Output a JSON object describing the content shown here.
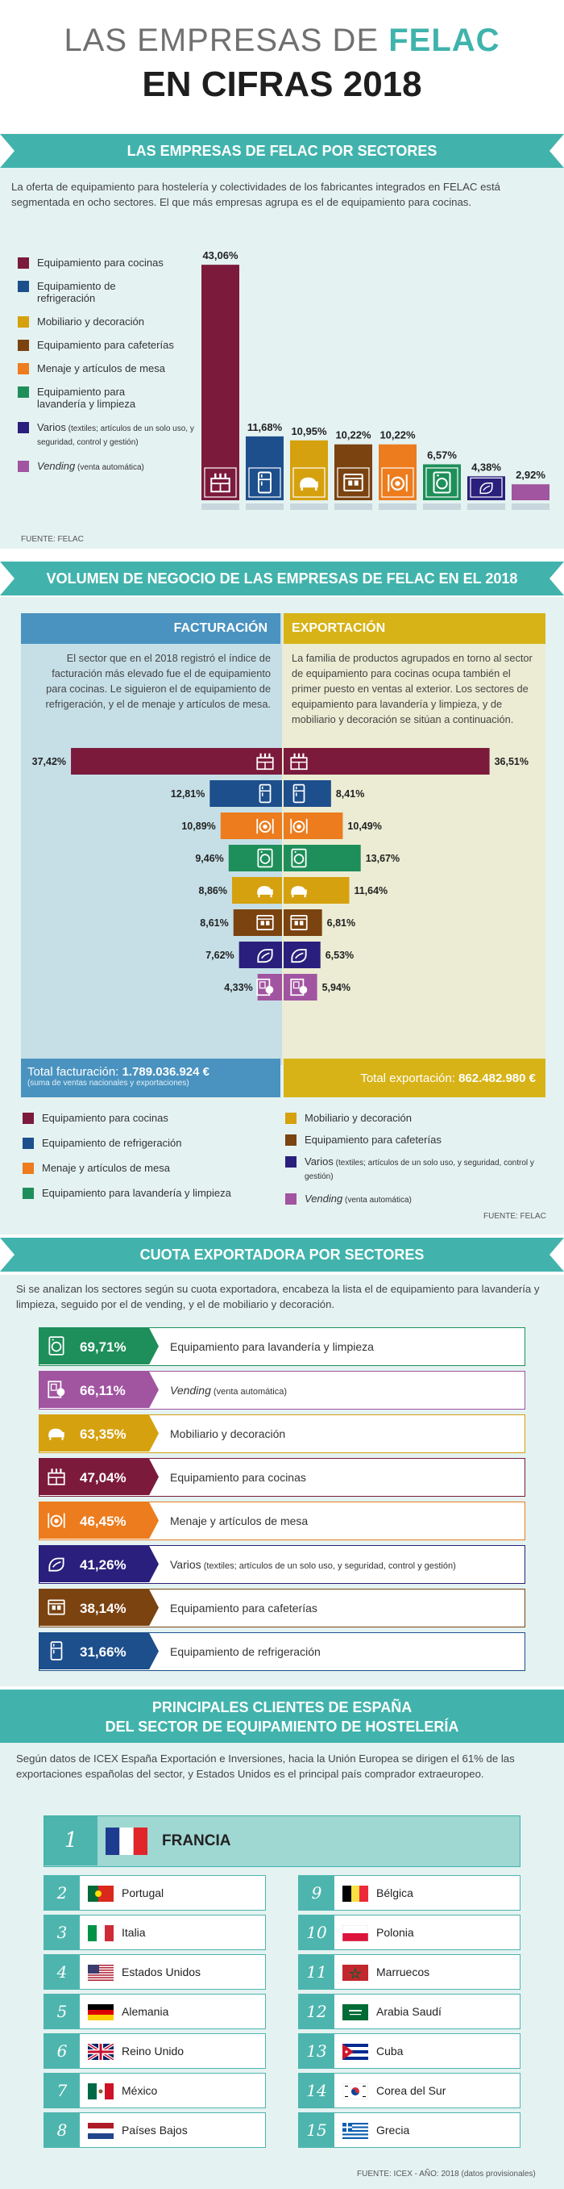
{
  "header": {
    "title_part1": "LAS EMPRESAS DE ",
    "title_brand": "FELAC",
    "title_line2": "EN CIFRAS 2018"
  },
  "sectores": {
    "heading": "LAS EMPRESAS DE FELAC POR SECTORES",
    "intro": "La oferta de equipamiento para hostelería y colectividades de los fabricantes integrados en FELAC está segmentada en ocho sectores. El que más empresas agrupa es el de equipamiento para cocinas.",
    "source": "FUENTE: FELAC",
    "legend": [
      {
        "label": "Equipamiento para cocinas",
        "note": "",
        "color": "#7c1a3c"
      },
      {
        "label": "Equipamiento de refrigeración",
        "note": "",
        "color": "#1d4f8c"
      },
      {
        "label": "Mobiliario y decoración",
        "note": "",
        "color": "#d5a10e"
      },
      {
        "label": "Equipamiento para cafeterías",
        "note": "",
        "color": "#7b4310"
      },
      {
        "label": "Menaje y artículos de mesa",
        "note": "",
        "color": "#ec7c1e"
      },
      {
        "label": "Equipamiento para lavandería y limpieza",
        "note": "",
        "color": "#1e8f5a"
      },
      {
        "label": "Varios",
        "note": "(textiles; artículos de un solo uso, y seguridad, control y gestión)",
        "color": "#2a1f7c"
      },
      {
        "label": "Vending",
        "note": "(venta automática)",
        "color": "#a154a0"
      }
    ]
  },
  "chart_data": [
    {
      "type": "bar",
      "title": "LAS EMPRESAS DE FELAC POR SECTORES",
      "categories": [
        "Equipamiento para cocinas",
        "Equipamiento de refrigeración",
        "Mobiliario y decoración",
        "Equipamiento para cafeterías",
        "Menaje y artículos de mesa",
        "Equipamiento para lavandería y limpieza",
        "Varios",
        "Vending"
      ],
      "values": [
        43.06,
        11.68,
        10.95,
        10.22,
        10.22,
        6.57,
        4.38,
        2.92
      ],
      "labels": [
        "43,06%",
        "11,68%",
        "10,95%",
        "10,22%",
        "10,22%",
        "6,57%",
        "4,38%",
        "2,92%"
      ],
      "colors": [
        "#7c1a3c",
        "#1d4f8c",
        "#d5a10e",
        "#7b4310",
        "#ec7c1e",
        "#1e8f5a",
        "#2a1f7c",
        "#a154a0"
      ],
      "icons": [
        "stove-icon",
        "fridge-icon",
        "sofa-icon",
        "coffee-machine-icon",
        "tableware-icon",
        "washer-icon",
        "towel-icon",
        "vending-icon"
      ],
      "ylim": [
        0,
        45
      ]
    },
    {
      "type": "bar",
      "title": "VOLUMEN DE NEGOCIO - FACTURACIÓN",
      "categories": [
        "Equipamiento para cocinas",
        "Equipamiento de refrigeración",
        "Menaje y artículos de mesa",
        "Equipamiento para lavandería y limpieza",
        "Mobiliario y decoración",
        "Equipamiento para cafeterías",
        "Varios",
        "Vending"
      ],
      "values": [
        37.42,
        12.81,
        10.89,
        9.46,
        8.86,
        8.61,
        7.62,
        4.33
      ],
      "labels": [
        "37,42%",
        "12,81%",
        "10,89%",
        "9,46%",
        "8,86%",
        "8,61%",
        "7,62%",
        "4,33%"
      ],
      "colors": [
        "#7c1a3c",
        "#1d4f8c",
        "#ec7c1e",
        "#1e8f5a",
        "#d5a10e",
        "#7b4310",
        "#2a1f7c",
        "#a154a0"
      ],
      "icons": [
        "stove-icon",
        "fridge-icon",
        "tableware-icon",
        "washer-icon",
        "sofa-icon",
        "coffee-machine-icon",
        "towel-icon",
        "vending-icon"
      ]
    },
    {
      "type": "bar",
      "title": "VOLUMEN DE NEGOCIO - EXPORTACIÓN",
      "categories": [
        "Equipamiento para cocinas",
        "Equipamiento de refrigeración",
        "Menaje y artículos de mesa",
        "Equipamiento para lavandería y limpieza",
        "Mobiliario y decoración",
        "Equipamiento para cafeterías",
        "Varios",
        "Vending"
      ],
      "values": [
        36.51,
        8.41,
        10.49,
        13.67,
        11.64,
        6.81,
        6.53,
        5.94
      ],
      "labels": [
        "36,51%",
        "8,41%",
        "10,49%",
        "13,67%",
        "11,64%",
        "6,81%",
        "6,53%",
        "5,94%"
      ],
      "colors": [
        "#7c1a3c",
        "#1d4f8c",
        "#ec7c1e",
        "#1e8f5a",
        "#d5a10e",
        "#7b4310",
        "#2a1f7c",
        "#a154a0"
      ]
    },
    {
      "type": "bar",
      "title": "CUOTA EXPORTADORA POR SECTORES",
      "categories": [
        "Equipamiento para lavandería y limpieza",
        "Vending",
        "Mobiliario y decoración",
        "Equipamiento para cocinas",
        "Menaje y artículos de mesa",
        "Varios",
        "Equipamiento para cafeterías",
        "Equipamiento de refrigeración"
      ],
      "values": [
        69.71,
        66.11,
        63.35,
        47.04,
        46.45,
        41.26,
        38.14,
        31.66
      ],
      "labels": [
        "69,71%",
        "66,11%",
        "63,35%",
        "47,04%",
        "46,45%",
        "41,26%",
        "38,14%",
        "31,66%"
      ],
      "colors": [
        "#1e8f5a",
        "#a154a0",
        "#d5a10e",
        "#7c1a3c",
        "#ec7c1e",
        "#2a1f7c",
        "#7b4310",
        "#1d4f8c"
      ],
      "icons": [
        "washer-icon",
        "vending-icon",
        "sofa-icon",
        "stove-icon",
        "tableware-icon",
        "towel-icon",
        "coffee-machine-icon",
        "fridge-icon"
      ]
    }
  ],
  "volumen": {
    "heading": "VOLUMEN DE NEGOCIO DE LAS EMPRESAS DE FELAC EN EL 2018",
    "fact_head": "FACTURACIÓN",
    "exp_head": "EXPORTACIÓN",
    "fact_text": "El sector que en el 2018 registró el índice de facturación más elevado fue el de equipamiento para cocinas. Le siguieron el de equipamiento de refrigeración, y el de menaje y artículos de mesa.",
    "exp_text": "La familia de productos agrupados en torno al sector de equipamiento para cocinas ocupa también el primer puesto en ventas al exterior. Los sectores de equipamiento para lavandería y limpieza, y de mobiliario y decoración se sitúan a continuación.",
    "total_fact_label": "Total facturación: ",
    "total_fact_value": "1.789.036.924 €",
    "total_fact_note": "(suma de ventas nacionales y exportaciones)",
    "total_exp_label": "Total exportación: ",
    "total_exp_value": "862.482.980 €",
    "source": "FUENTE: FELAC",
    "legend": [
      {
        "label": "Equipamiento para cocinas",
        "note": "",
        "color": "#7c1a3c"
      },
      {
        "label": "Equipamiento de refrigeración",
        "note": "",
        "color": "#1d4f8c"
      },
      {
        "label": "Menaje y artículos de mesa",
        "note": "",
        "color": "#ec7c1e"
      },
      {
        "label": "Equipamiento para lavandería y limpieza",
        "note": "",
        "color": "#1e8f5a"
      },
      {
        "label": "Mobiliario y decoración",
        "note": "",
        "color": "#d5a10e"
      },
      {
        "label": "Equipamiento para cafeterías",
        "note": "",
        "color": "#7b4310"
      },
      {
        "label": "Varios",
        "note": "(textiles; artículos de un solo uso, y seguridad, control y gestión)",
        "color": "#2a1f7c"
      },
      {
        "label": "Vending",
        "note": "(venta automática)",
        "color": "#a154a0"
      }
    ]
  },
  "cuota": {
    "heading": "CUOTA EXPORTADORA POR SECTORES",
    "intro": "Si se analizan los sectores según su cuota exportadora, encabeza la lista el de equipamiento para lavandería y limpieza, seguido por el de vending, y el de mobiliario y decoración.",
    "rows": [
      {
        "pct": "69,71%",
        "label": "Equipamiento para lavandería y limpieza",
        "note": ""
      },
      {
        "pct": "66,11%",
        "label": "Vending",
        "note": "(venta automática)"
      },
      {
        "pct": "63,35%",
        "label": "Mobiliario y decoración",
        "note": ""
      },
      {
        "pct": "47,04%",
        "label": "Equipamiento para cocinas",
        "note": ""
      },
      {
        "pct": "46,45%",
        "label": "Menaje y artículos de mesa",
        "note": ""
      },
      {
        "pct": "41,26%",
        "label": "Varios",
        "note": "(textiles; artículos de un solo uso, y seguridad, control y gestión)"
      },
      {
        "pct": "38,14%",
        "label": "Equipamiento para cafeterías",
        "note": ""
      },
      {
        "pct": "31,66%",
        "label": "Equipamiento de refrigeración",
        "note": ""
      }
    ]
  },
  "clientes": {
    "heading1": "PRINCIPALES CLIENTES DE ESPAÑA",
    "heading2": "DEL SECTOR DE EQUIPAMIENTO DE HOSTELERÍA",
    "intro": "Según datos de ICEX España Exportación e Inversiones, hacia la Unión Europea se dirigen el 61% de las exportaciones españolas del sector, y Estados Unidos es el principal país comprador extraeuropeo.",
    "top": {
      "num": "1",
      "name": "FRANCIA",
      "flag": "france"
    },
    "left": [
      {
        "num": "2",
        "name": "Portugal",
        "flag": "portugal"
      },
      {
        "num": "3",
        "name": "Italia",
        "flag": "italy"
      },
      {
        "num": "4",
        "name": "Estados Unidos",
        "flag": "usa"
      },
      {
        "num": "5",
        "name": "Alemania",
        "flag": "germany"
      },
      {
        "num": "6",
        "name": "Reino Unido",
        "flag": "uk"
      },
      {
        "num": "7",
        "name": "México",
        "flag": "mexico"
      },
      {
        "num": "8",
        "name": "Países Bajos",
        "flag": "netherlands"
      }
    ],
    "right": [
      {
        "num": "9",
        "name": "Bélgica",
        "flag": "belgium"
      },
      {
        "num": "10",
        "name": "Polonia",
        "flag": "poland"
      },
      {
        "num": "11",
        "name": "Marruecos",
        "flag": "morocco"
      },
      {
        "num": "12",
        "name": "Arabia Saudí",
        "flag": "saudi"
      },
      {
        "num": "13",
        "name": "Cuba",
        "flag": "cuba"
      },
      {
        "num": "14",
        "name": "Corea del Sur",
        "flag": "korea"
      },
      {
        "num": "15",
        "name": "Grecia",
        "flag": "greece"
      }
    ],
    "source": "FUENTE: ICEX - AÑO: 2018 (datos provisionales)"
  }
}
